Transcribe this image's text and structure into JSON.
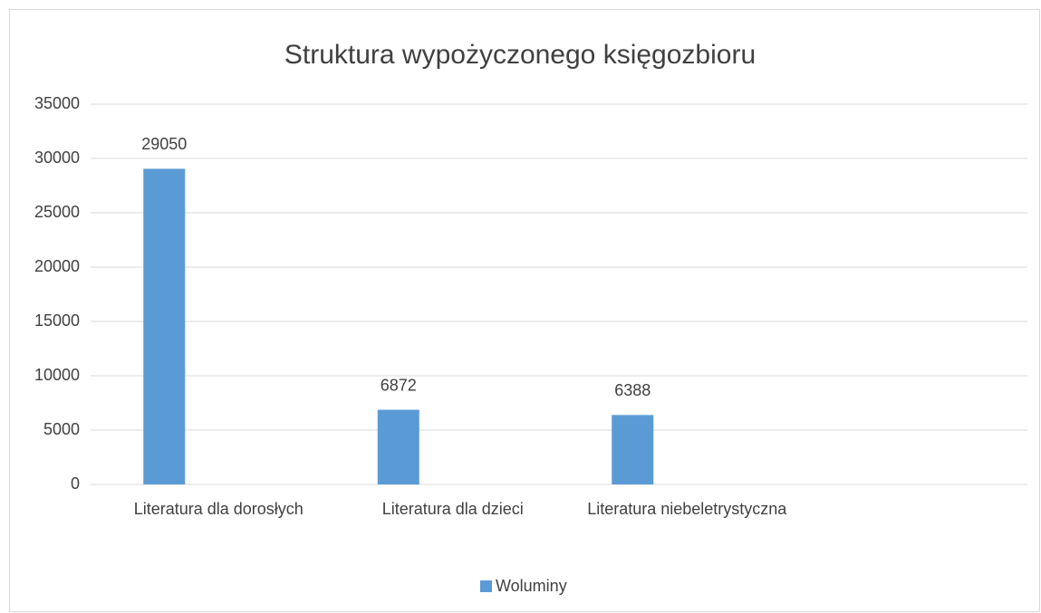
{
  "chart_data": {
    "type": "bar",
    "title": "Struktura wypożyczonego księgozbioru",
    "categories": [
      "Literatura dla dorosłych",
      "Literatura dla dzieci",
      "Literatura niebeletrystyczna",
      null
    ],
    "series": [
      {
        "name": "Woluminy",
        "color": "#5b9bd5",
        "values": [
          29050,
          6872,
          6388,
          null
        ]
      }
    ],
    "ylim": [
      0,
      35000
    ],
    "yticks": [
      0,
      5000,
      10000,
      15000,
      20000,
      25000,
      30000,
      35000
    ],
    "grid": true,
    "legend": "bottom"
  }
}
